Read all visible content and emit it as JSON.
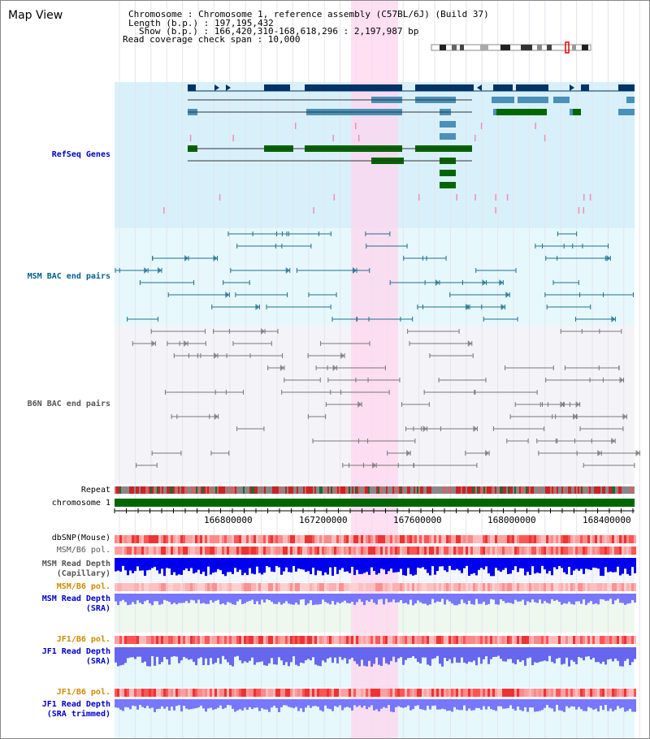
{
  "view": {
    "title": "Map View",
    "chromosome": "Chromosome    : Chromosome 1, reference assembly (C57BL/6J) (Build 37)",
    "length": "Length (b.p.) : 197,195,432",
    "show": "Show (b.p.) : 166,420,310-168,618,296 : 2,197,987 bp",
    "coverage": "Read coverage check span : 10,000"
  },
  "tracks": {
    "refseq": "RefSeq Genes",
    "msm_bac": "MSM BAC end pairs",
    "b6n_bac": "B6N BAC end pairs",
    "repeat": "Repeat",
    "chromosome": "chromosome 1",
    "dbsnp": "dbSNP(Mouse)",
    "msm_pol": "MSM/B6 pol.",
    "msm_depth_cap_1": "MSM Read Depth",
    "msm_depth_cap_2": "(Capillary)",
    "msm_pol_sra": "MSM/B6 pol.",
    "msm_depth_sra_1": "MSM Read Depth",
    "msm_depth_sra_2": "(SRA)",
    "jf1_pol": "JF1/B6 pol.",
    "jf1_depth_1": "JF1 Read Depth",
    "jf1_depth_2": "(SRA)",
    "jf1_pol_trim": "JF1/B6 pol.",
    "jf1_trim_1": "JF1 Read Depth",
    "jf1_trim_2": "(SRA trimmed)"
  },
  "axis": {
    "ticks": [
      "166800000",
      "167200000",
      "167600000",
      "168000000",
      "168400000"
    ]
  },
  "colors": {
    "label_blue": "#0000cc",
    "label_teal": "#005f8f",
    "label_gray": "#555555",
    "label_orange": "#d08a00",
    "highlight": "#ffd6ef",
    "refseq_bg": "#d8f0fa",
    "msm_bg": "#e6f8fb",
    "b6n_bg": "#f4f4f8",
    "gene_dark": "#003366",
    "gene_mid": "#4a90b8",
    "gene_green": "#006600",
    "chromosome_bar": "#006600"
  }
}
